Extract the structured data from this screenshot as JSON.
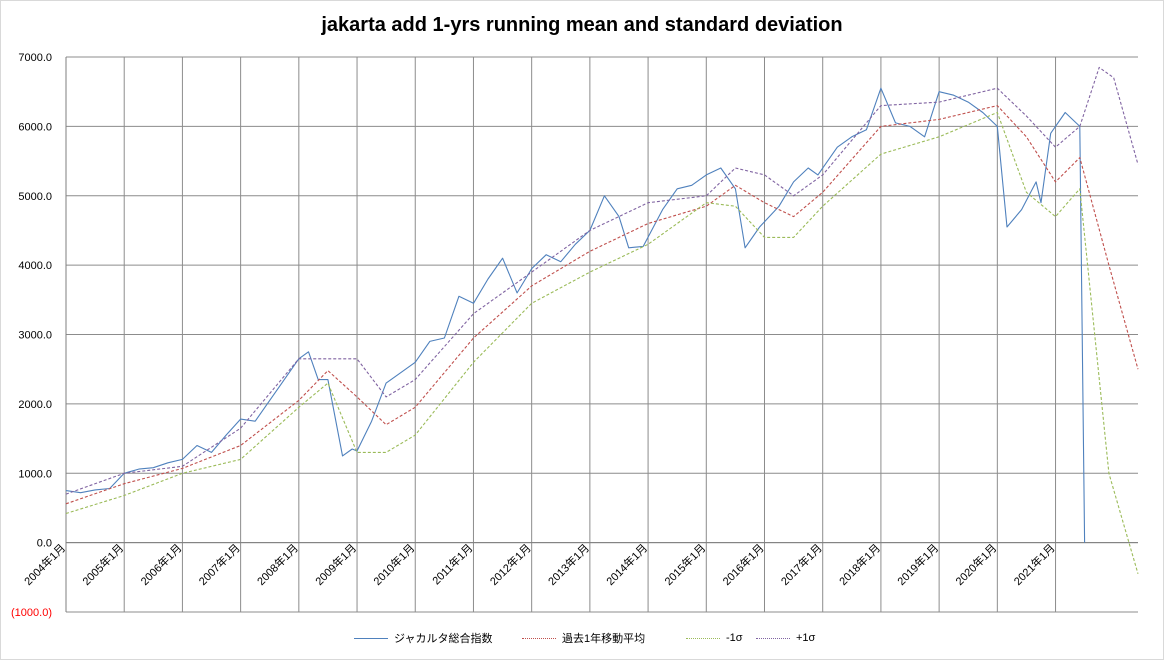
{
  "chart_data": {
    "type": "line",
    "title": "jakarta add 1-yrs running mean and standard deviation",
    "xlabel": "",
    "ylabel": "",
    "ylim": [
      -1000,
      7000
    ],
    "y_ticks": [
      "(1000.0)",
      "0.0",
      "1000.0",
      "2000.0",
      "3000.0",
      "4000.0",
      "5000.0",
      "6000.0",
      "7000.0"
    ],
    "x_ticks": [
      "2004年1月",
      "2005年1月",
      "2006年1月",
      "2007年1月",
      "2008年1月",
      "2009年1月",
      "2010年1月",
      "2011年1月",
      "2012年1月",
      "2013年1月",
      "2014年1月",
      "2015年1月",
      "2016年1月",
      "2017年1月",
      "2018年1月",
      "2019年1月",
      "2020年1月",
      "2021年1月"
    ],
    "x_start": "2004-01",
    "x_end": "2022-06",
    "grid": true,
    "legend_position": "bottom",
    "series": [
      {
        "name": "ジャカルタ総合指数",
        "color": "#4f81bd",
        "dash": "solid",
        "points": [
          [
            "2004-01",
            750
          ],
          [
            "2004-04",
            720
          ],
          [
            "2004-07",
            760
          ],
          [
            "2004-10",
            780
          ],
          [
            "2005-01",
            1000
          ],
          [
            "2005-04",
            1060
          ],
          [
            "2005-07",
            1080
          ],
          [
            "2005-10",
            1150
          ],
          [
            "2006-01",
            1200
          ],
          [
            "2006-04",
            1400
          ],
          [
            "2006-07",
            1300
          ],
          [
            "2006-10",
            1550
          ],
          [
            "2007-01",
            1780
          ],
          [
            "2007-04",
            1750
          ],
          [
            "2007-07",
            2050
          ],
          [
            "2007-10",
            2350
          ],
          [
            "2008-01",
            2650
          ],
          [
            "2008-03",
            2750
          ],
          [
            "2008-05",
            2350
          ],
          [
            "2008-07",
            2350
          ],
          [
            "2008-10",
            1250
          ],
          [
            "2008-12",
            1350
          ],
          [
            "2009-01",
            1320
          ],
          [
            "2009-04",
            1750
          ],
          [
            "2009-07",
            2300
          ],
          [
            "2009-10",
            2450
          ],
          [
            "2010-01",
            2600
          ],
          [
            "2010-04",
            2900
          ],
          [
            "2010-07",
            2950
          ],
          [
            "2010-10",
            3550
          ],
          [
            "2011-01",
            3450
          ],
          [
            "2011-04",
            3800
          ],
          [
            "2011-07",
            4100
          ],
          [
            "2011-10",
            3600
          ],
          [
            "2012-01",
            3950
          ],
          [
            "2012-04",
            4150
          ],
          [
            "2012-07",
            4050
          ],
          [
            "2012-10",
            4300
          ],
          [
            "2013-01",
            4500
          ],
          [
            "2013-04",
            5000
          ],
          [
            "2013-07",
            4700
          ],
          [
            "2013-09",
            4250
          ],
          [
            "2013-12",
            4270
          ],
          [
            "2014-04",
            4800
          ],
          [
            "2014-07",
            5100
          ],
          [
            "2014-10",
            5150
          ],
          [
            "2015-01",
            5300
          ],
          [
            "2015-04",
            5400
          ],
          [
            "2015-07",
            5100
          ],
          [
            "2015-09",
            4250
          ],
          [
            "2015-12",
            4550
          ],
          [
            "2016-04",
            4850
          ],
          [
            "2016-07",
            5200
          ],
          [
            "2016-10",
            5400
          ],
          [
            "2016-12",
            5300
          ],
          [
            "2017-04",
            5700
          ],
          [
            "2017-07",
            5850
          ],
          [
            "2017-10",
            5950
          ],
          [
            "2018-01",
            6550
          ],
          [
            "2018-04",
            6050
          ],
          [
            "2018-07",
            6000
          ],
          [
            "2018-10",
            5850
          ],
          [
            "2019-01",
            6500
          ],
          [
            "2019-04",
            6450
          ],
          [
            "2019-07",
            6350
          ],
          [
            "2019-10",
            6200
          ],
          [
            "2020-01",
            6000
          ],
          [
            "2020-03",
            4550
          ],
          [
            "2020-06",
            4800
          ],
          [
            "2020-09",
            5200
          ],
          [
            "2020-10",
            4900
          ],
          [
            "2020-12",
            5900
          ],
          [
            "2021-03",
            6200
          ],
          [
            "2021-06",
            6000
          ],
          [
            "2021-07",
            0
          ]
        ]
      },
      {
        "name": "過去1年移動平均",
        "color": "#c0504d",
        "dash": "dashed",
        "points": [
          [
            "2004-01",
            560
          ],
          [
            "2005-01",
            850
          ],
          [
            "2006-01",
            1070
          ],
          [
            "2007-01",
            1400
          ],
          [
            "2008-01",
            2050
          ],
          [
            "2008-07",
            2480
          ],
          [
            "2009-01",
            2100
          ],
          [
            "2009-07",
            1700
          ],
          [
            "2010-01",
            1950
          ],
          [
            "2011-01",
            2950
          ],
          [
            "2012-01",
            3700
          ],
          [
            "2013-01",
            4200
          ],
          [
            "2014-01",
            4600
          ],
          [
            "2015-01",
            4850
          ],
          [
            "2015-07",
            5150
          ],
          [
            "2016-01",
            4900
          ],
          [
            "2016-07",
            4700
          ],
          [
            "2017-01",
            5050
          ],
          [
            "2018-01",
            6000
          ],
          [
            "2019-01",
            6100
          ],
          [
            "2020-01",
            6300
          ],
          [
            "2020-07",
            5850
          ],
          [
            "2021-01",
            5200
          ],
          [
            "2021-06",
            5550
          ],
          [
            "2021-12",
            4000
          ],
          [
            "2022-06",
            2500
          ]
        ]
      },
      {
        "name": "-1σ",
        "color": "#9bbb59",
        "dash": "dashed",
        "points": [
          [
            "2004-01",
            420
          ],
          [
            "2005-01",
            680
          ],
          [
            "2006-01",
            1000
          ],
          [
            "2007-01",
            1200
          ],
          [
            "2008-01",
            1950
          ],
          [
            "2008-07",
            2300
          ],
          [
            "2009-01",
            1300
          ],
          [
            "2009-07",
            1300
          ],
          [
            "2010-01",
            1550
          ],
          [
            "2011-01",
            2600
          ],
          [
            "2012-01",
            3450
          ],
          [
            "2013-01",
            3900
          ],
          [
            "2014-01",
            4300
          ],
          [
            "2015-01",
            4900
          ],
          [
            "2015-07",
            4850
          ],
          [
            "2016-01",
            4400
          ],
          [
            "2016-07",
            4400
          ],
          [
            "2017-01",
            4850
          ],
          [
            "2018-01",
            5600
          ],
          [
            "2019-01",
            5850
          ],
          [
            "2020-01",
            6200
          ],
          [
            "2020-07",
            5050
          ],
          [
            "2021-01",
            4700
          ],
          [
            "2021-06",
            5100
          ],
          [
            "2021-12",
            1000
          ],
          [
            "2022-06",
            -450
          ]
        ]
      },
      {
        "name": "+1σ",
        "color": "#8064a2",
        "dash": "dashed",
        "points": [
          [
            "2004-01",
            700
          ],
          [
            "2005-01",
            1000
          ],
          [
            "2006-01",
            1100
          ],
          [
            "2007-01",
            1650
          ],
          [
            "2008-01",
            2650
          ],
          [
            "2008-07",
            2650
          ],
          [
            "2009-01",
            2650
          ],
          [
            "2009-07",
            2100
          ],
          [
            "2010-01",
            2350
          ],
          [
            "2011-01",
            3300
          ],
          [
            "2012-01",
            3900
          ],
          [
            "2013-01",
            4500
          ],
          [
            "2014-01",
            4900
          ],
          [
            "2015-01",
            5000
          ],
          [
            "2015-07",
            5400
          ],
          [
            "2016-01",
            5300
          ],
          [
            "2016-07",
            5000
          ],
          [
            "2017-01",
            5300
          ],
          [
            "2018-01",
            6300
          ],
          [
            "2019-01",
            6350
          ],
          [
            "2020-01",
            6550
          ],
          [
            "2020-07",
            6150
          ],
          [
            "2021-01",
            5700
          ],
          [
            "2021-06",
            6000
          ],
          [
            "2021-10",
            6850
          ],
          [
            "2022-01",
            6700
          ],
          [
            "2022-06",
            5450
          ]
        ]
      }
    ]
  }
}
